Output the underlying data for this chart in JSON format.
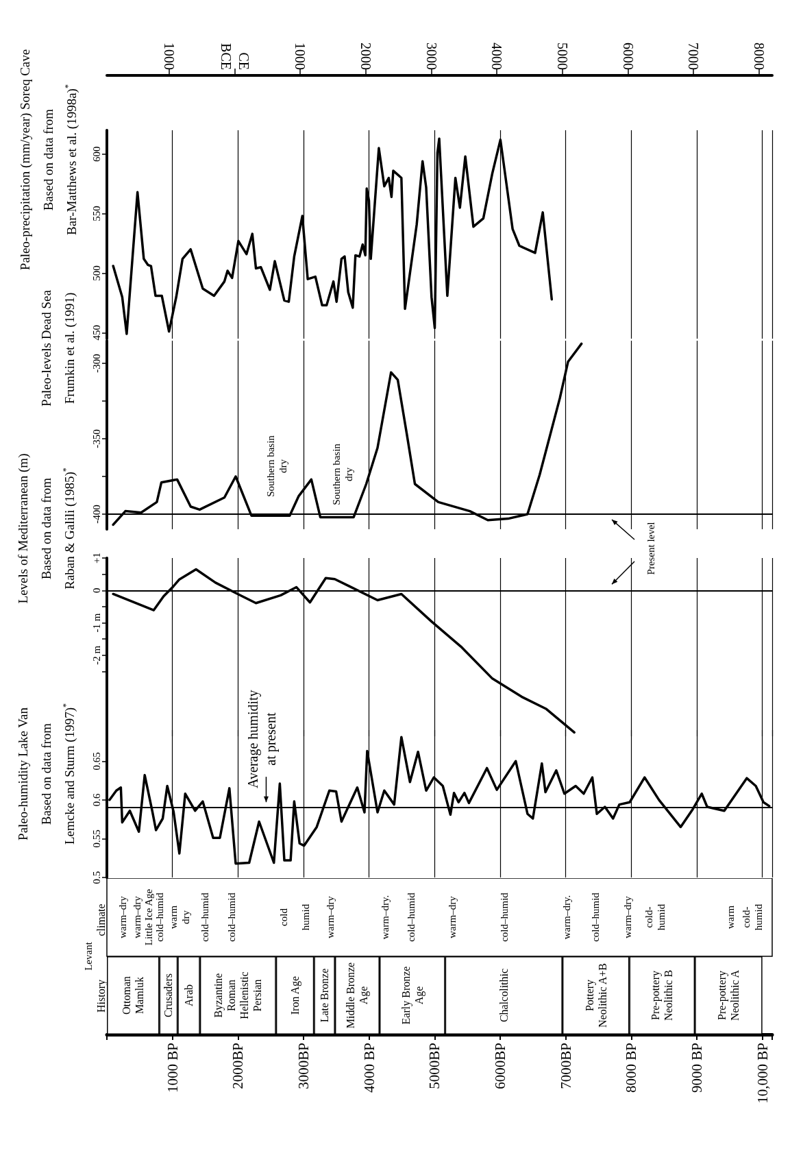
{
  "chart_data": [
    {
      "type": "line",
      "title": "Paleo-precipitation (mm/year) Soreq Cave\nBased on data from\nBar-Matthews et al. (1998a)$^{*}$",
      "color": "#000000",
      "x": [
        96,
        234,
        302,
        467,
        563,
        625,
        673,
        742,
        838,
        948,
        1058,
        1154,
        1278,
        1463,
        1635,
        1793,
        1841,
        1910,
        2006,
        2130,
        2219,
        2274,
        2349,
        2487,
        2562,
        2707,
        2775,
        2858,
        2982,
        3064,
        3181,
        3284,
        3352,
        3456,
        3504,
        3579,
        3627,
        3682,
        3751,
        3792,
        3854,
        3902,
        3943,
        3964,
        3998,
        4026,
        4149,
        4232,
        4300,
        4342,
        4369,
        4493,
        4548,
        4727,
        4816,
        4871,
        4953,
        5002,
        5043,
        5070,
        5194,
        5317,
        5386,
        5468,
        5592,
        5743,
        5881,
        6004,
        6190,
        6293,
        6533,
        6650,
        6787
      ],
      "values": [
        506,
        480,
        449,
        568,
        512,
        507,
        506,
        481,
        481,
        451,
        480,
        512,
        520,
        487,
        481,
        493,
        502,
        496,
        527,
        516,
        533,
        504,
        505,
        486,
        510,
        477,
        476,
        514,
        548,
        495,
        497,
        473,
        473,
        493,
        476,
        512,
        514,
        484,
        471,
        515,
        514,
        524,
        515,
        571,
        561,
        512,
        605,
        573,
        580,
        564,
        586,
        580,
        470,
        541,
        594,
        572,
        480,
        454,
        601,
        613,
        481,
        580,
        555,
        598,
        539,
        546,
        584,
        612,
        537,
        523,
        517,
        551,
        478
      ],
      "xlim": [
        0,
        10150
      ],
      "xticks": [
        1000,
        2000,
        3000,
        4000,
        5000,
        6000,
        7000,
        8000,
        9000,
        10000
      ],
      "grid": "x",
      "tick_labels": "y",
      "ylim": [
        445,
        620
      ],
      "yticks": [
        450,
        500,
        550,
        600
      ],
      "x2lim": [
        1950,
        -8200
      ],
      "x2ticks": [
        1000,
        {
          "value": 0,
          "label": "CE\nBCE"
        },
        {
          "value": -1000,
          "label": "1000"
        },
        {
          "value": -2000,
          "label": "2000"
        },
        {
          "value": -3000,
          "label": "3000"
        },
        {
          "value": -4000,
          "label": "4000"
        },
        {
          "value": -5000,
          "label": "5000"
        },
        {
          "value": -6000,
          "label": "6000"
        },
        {
          "value": -7000,
          "label": "7000"
        },
        {
          "value": -8000,
          "label": "8000"
        }
      ]
    },
    {
      "type": "line",
      "title": "Paleo-levels Dead Sea\nFrumkin et al. (1991)",
      "color": "#000000",
      "x": [
        96,
        282,
        522,
        762,
        831,
        1072,
        1278,
        1415,
        1793,
        1965,
        2205,
        2789,
        2927,
        3119,
        3256,
        3765,
        3957,
        4129,
        4335,
        4438,
        4576,
        4699,
        5056,
        5537,
        5812,
        6121,
        6417,
        6602,
        6911,
        7035,
        7241
      ],
      "values": [
        -407,
        -398,
        -399,
        -392,
        -379,
        -377,
        -395,
        -397,
        -389,
        -375,
        -401,
        -401,
        -388,
        -377,
        -402,
        -402,
        -380,
        -356,
        -306,
        -311,
        -347,
        -380,
        -392,
        -398,
        -404,
        -403,
        -400,
        -374,
        -323,
        -299,
        -287
      ],
      "xlim": [
        0,
        10150
      ],
      "xticks": [
        1000,
        2000,
        3000,
        4000,
        5000,
        6000,
        7000,
        8000,
        9000,
        10000
      ],
      "grid": "x",
      "tick_labels": "y",
      "ylim": [
        -410,
        -285
      ],
      "yticks": [
        -400,
        {
          "value": -375,
          "label": null
        },
        -350,
        {
          "value": -325,
          "label": null
        },
        -300
      ],
      "ref_lines": [
        {
          "axis": "y",
          "value": -400
        }
      ],
      "annotations": [
        "Southern basin\ndry",
        "Southern basin\ndry"
      ]
    },
    {
      "type": "line",
      "title": "Levels of Mediterranean (m)\nBased on data from\nRaban & Galili (1985)$^{*}$",
      "color": "#000000",
      "x": [
        96,
        715,
        866,
        1003,
        1106,
        1360,
        1656,
        1965,
        2274,
        2652,
        2892,
        3098,
        3339,
        3476,
        4129,
        4493,
        4953,
        5400,
        5881,
        6327,
        6705,
        7131
      ],
      "values": [
        -0.11,
        -0.61,
        -0.18,
        0.1,
        0.34,
        0.65,
        0.24,
        -0.08,
        -0.39,
        -0.15,
        0.1,
        -0.37,
        0.38,
        0.35,
        -0.3,
        -0.11,
        -0.96,
        -1.73,
        -2.72,
        -3.28,
        -3.66,
        -4.38
      ],
      "xlim": [
        0,
        10150
      ],
      "xticks": [
        1000,
        2000,
        3000,
        4000,
        5000,
        6000,
        7000,
        8000,
        9000,
        10000
      ],
      "grid": "x",
      "tick_labels": "y",
      "ylim": [
        -4.5,
        1
      ],
      "yticks": [
        {
          "value": 1,
          "label": "+1"
        },
        {
          "value": 0.5,
          "label": null
        },
        0,
        {
          "value": -0.5,
          "label": null
        },
        {
          "value": -1,
          "label": "-1 m"
        },
        {
          "value": -1.5,
          "label": null
        },
        {
          "value": -2,
          "label": "-2 m"
        },
        {
          "value": -2.5,
          "label": null
        }
      ],
      "ref_lines": [
        {
          "axis": "y",
          "value": 0
        }
      ],
      "annotations": [
        "Present level"
      ]
    },
    {
      "type": "line",
      "title": "Paleo-humidity Lake Van\nBased on data from\nLemcke and Sturm (1997)$^{*}$",
      "color": "#000000",
      "x": [
        41,
        144,
        213,
        234,
        350,
        488,
        577,
        694,
        749,
        852,
        921,
        1017,
        1106,
        1195,
        1346,
        1463,
        1621,
        1724,
        1869,
        1965,
        2171,
        2322,
        2548,
        2638,
        2707,
        2803,
        2858,
        2940,
        3009,
        3201,
        3394,
        3497,
        3579,
        3820,
        3930,
        3971,
        4129,
        4232,
        4383,
        4493,
        4624,
        4747,
        4871,
        4988,
        5125,
        5241,
        5296,
        5365,
        5455,
        5523,
        5798,
        5949,
        6238,
        6417,
        6499,
        6636,
        6691,
        6856,
        6980,
        7152,
        7275,
        7406,
        7475,
        7598,
        7722,
        7818,
        7976,
        8203,
        8423,
        8753,
        8938,
        9075,
        9158,
        9419,
        9762,
        9900,
        10017,
        10106
      ],
      "values": [
        0.6,
        0.612,
        0.616,
        0.571,
        0.586,
        0.559,
        0.632,
        0.585,
        0.561,
        0.576,
        0.618,
        0.585,
        0.531,
        0.608,
        0.586,
        0.598,
        0.551,
        0.551,
        0.615,
        0.518,
        0.519,
        0.572,
        0.519,
        0.621,
        0.522,
        0.522,
        0.598,
        0.544,
        0.541,
        0.565,
        0.612,
        0.611,
        0.572,
        0.616,
        0.584,
        0.663,
        0.584,
        0.612,
        0.594,
        0.681,
        0.623,
        0.662,
        0.612,
        0.629,
        0.618,
        0.581,
        0.609,
        0.597,
        0.609,
        0.596,
        0.641,
        0.613,
        0.65,
        0.582,
        0.576,
        0.647,
        0.61,
        0.638,
        0.608,
        0.618,
        0.608,
        0.629,
        0.582,
        0.591,
        0.576,
        0.594,
        0.597,
        0.629,
        0.6,
        0.565,
        0.588,
        0.608,
        0.591,
        0.586,
        0.628,
        0.618,
        0.597,
        0.592
      ],
      "xlim": [
        0,
        10150
      ],
      "xticks": [
        1000,
        2000,
        3000,
        4000,
        5000,
        6000,
        7000,
        8000,
        9000,
        10000
      ],
      "grid": "x",
      "tick_labels": "y",
      "ylim": [
        0.5,
        0.69
      ],
      "yticks": [
        0.5,
        0.55,
        0.6,
        0.65
      ],
      "ref_lines": [
        {
          "axis": "y",
          "value": 0.59
        }
      ],
      "annotations": [
        {
          "text": "Average humidity\nat present",
          "x": 2430,
          "y": 0.59
        }
      ]
    },
    {
      "type": "other",
      "title": "climate",
      "annotations": [
        "Levant",
        "warm–dry",
        "warm–dry",
        "Little Ice Age",
        "cold–humid",
        "warm\ndry",
        "cold–humid",
        "cold–humid",
        "cold",
        "humid",
        "warm–dry",
        "warm–dry.",
        "cold–humid",
        "warm–dry",
        "cold–humid",
        "warm–dry.",
        "cold–humid",
        "warm–dry",
        "cold-\nhumid",
        "warm",
        "cold-\nhumid"
      ]
    },
    {
      "type": "bar",
      "title": "History",
      "orientation": "horizontal",
      "stacked": true,
      "categories": [
        null
      ],
      "xlim": [
        0,
        10150
      ],
      "xticks": [
        {
          "value": 1000,
          "label": "1000 BP"
        },
        {
          "value": 2000,
          "label": "2000BP"
        },
        {
          "value": 3000,
          "label": "3000BP"
        },
        {
          "value": 4000,
          "label": "4000 BP"
        },
        {
          "value": 5000,
          "label": "5000BP"
        },
        {
          "value": 6000,
          "label": "6000BP"
        },
        {
          "value": 7000,
          "label": "7000BP"
        },
        {
          "value": 8000,
          "label": "8000 BP"
        },
        {
          "value": 9000,
          "label": "9000 BP"
        },
        {
          "value": 10000,
          "label": "10,000 BP"
        }
      ],
      "series": [
        {
          "name": "Ottoman\nMamluk",
          "color": "#ffffff",
          "values": [
            800
          ]
        },
        {
          "name": "Crusaders",
          "color": "#ffffff",
          "values": [
            280
          ]
        },
        {
          "name": "Arab",
          "color": "#ffffff",
          "values": [
            340
          ]
        },
        {
          "name": "Byzantine\nRoman\nHellenistic\nPersian",
          "color": "#ffffff",
          "values": [
            1160
          ]
        },
        {
          "name": "Iron Age",
          "color": "#ffffff",
          "values": [
            580
          ]
        },
        {
          "name": "Late Bronze",
          "color": "#ffffff",
          "values": [
            320
          ]
        },
        {
          "name": "Middle Bronze\nAge",
          "color": "#ffffff",
          "values": [
            680
          ]
        },
        {
          "name": "Early Bronze\nAge",
          "color": "#ffffff",
          "values": [
            1000
          ]
        },
        {
          "name": "Chalcolithic",
          "color": "#ffffff",
          "values": [
            1790
          ]
        },
        {
          "name": "Pottery\nNeolithic A+B",
          "color": "#ffffff",
          "values": [
            1020
          ]
        },
        {
          "name": "Pre-pottery\nNeolithic B",
          "color": "#ffffff",
          "values": [
            1000
          ]
        },
        {
          "name": "Pre-pottery\nNeolithic A",
          "color": "#ffffff",
          "values": [
            1030
          ]
        }
      ]
    }
  ]
}
